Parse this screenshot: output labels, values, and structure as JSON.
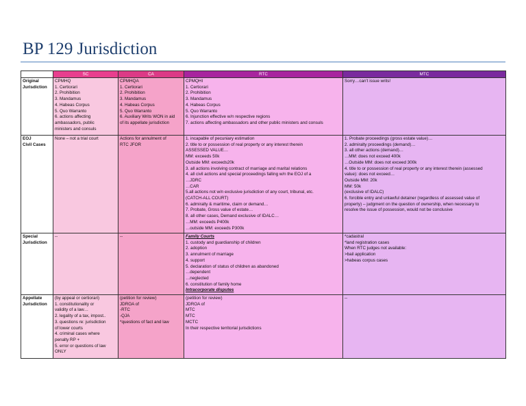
{
  "header": {
    "title": "BP 129 Jurisdiction"
  },
  "table": {
    "columns": [
      "SC",
      "CA",
      "RTC",
      "MTC"
    ],
    "rows": [
      {
        "cells": [
          [
            "Original",
            "Jurisdiction"
          ],
          [
            "CPMHQ",
            "1. Certiorari",
            "2. Prohibition",
            "3. Mandamus",
            "4. Habeas Corpus",
            "5. Quo Warranto",
            "6. actions affecting",
            "ambassadors, public",
            "ministers and consuls"
          ],
          [
            "CPMHQA",
            "1. Certiorari",
            "2. Prohibition",
            "3. Mandamus",
            "4. Habeas Corpus",
            "5. Quo Warranto",
            "6. Auxiliary Writs WON in aid",
            "of its appellate jurisdiction"
          ],
          [
            "CPMQHI",
            " 1. Certiorari",
            "2. Prohibition",
            "3. Mandamus",
            "4. Habeas Corpus",
            "5. Quo Warranto",
            "6. Injunction effective w/n respective regions",
            "7. actions affecting ambassadors and other public ministers and consuls"
          ],
          [
            "Sorry…can't issue writs!"
          ]
        ]
      },
      {
        "cells": [
          [
            "EOJ",
            "Civil Cases"
          ],
          [
            "None – not a trial court"
          ],
          [
            "Actions for annulment of",
            "RTC JFOR"
          ],
          [
            "1. incapable of pecuniary estimation",
            "2. title to or possession of real property or any interest therein",
            "ASSESSED VALUE…",
            "MM: exceeds 50k",
            "Outside MM: exceeds20k",
            "3. all actions involving contract of marriage and marital relations",
            "4. all civil actions and special proceedings falling w/n the EOJ of a",
            "…JDRC",
            "…CAR",
            "5.all actions not w/n exclusive jurisdiction of any court, tribunal, etc.",
            "(CATCH-ALL COURT)",
            "6. admiralty & maritime, claim or demand…",
            "7. Probate, Gross value of estate…",
            "8. all other cases, Demand exclusive of IDALC…",
            "…MM: exceeds P400k",
            "…outside MM: exceeds P300k"
          ],
          [
            "1. Probate proceedings (gross estate value)…",
            "2. admiralty proceedings (demand)…",
            "3. all other actions  (demand)…",
            "…MM: does not exceed 400k",
            "…Outside MM: does not exceed 300k",
            "4. title to or possession of real property or any interest therein (assessed",
            "value): does not exceed…",
            "Outside MM: 20k",
            "MM: 50k",
            "(exclusive of IDALC)",
            "6. forcible entry and unlawful detainer (regardless of assessed value of",
            "property) – judgment on the question of ownership, when necessary to",
            "resolve the issue of possession, would not be conclusive"
          ]
        ]
      },
      {
        "cells": [
          [
            "Special",
            "Jurisdiction"
          ],
          [
            "--"
          ],
          [
            "--"
          ],
          [
            "Family Courts",
            "1. custody and guardianship of children",
            "2. adoption",
            "3. annulment of marriage",
            "4. support",
            "5. declaration of status of children as abandoned",
            "…dependent",
            "…neglected",
            "6. constitution of family home",
            "Intracorporate disputes"
          ],
          [
            "*cadastral",
            "*land registration cases",
            "When RTC judges not available:",
            ">bail application",
            ">habeas corpus cases"
          ]
        ]
      },
      {
        "cells": [
          [
            "Appellate",
            "Jurisdiction"
          ],
          [
            "(by appeal or certiorari)",
            "1. constitutionality or",
            "validity of a law…",
            "2. legality of a tax, impost..",
            "3. questions re: jurisdiction",
            "of lower courts",
            "4. criminal cases where",
            "penalty RP +",
            "5. error or questions of law",
            "ONLY"
          ],
          [
            "(petition for review)",
            "JDROA of",
            "-RTC",
            "-QJA",
            "*questions of fact and law"
          ],
          [
            "(petition for review)",
            "JDROA of",
            "MTC",
            "MTC",
            "MCTC",
            "In their respective territorial jurisdictions"
          ],
          [
            "--"
          ]
        ]
      }
    ]
  }
}
